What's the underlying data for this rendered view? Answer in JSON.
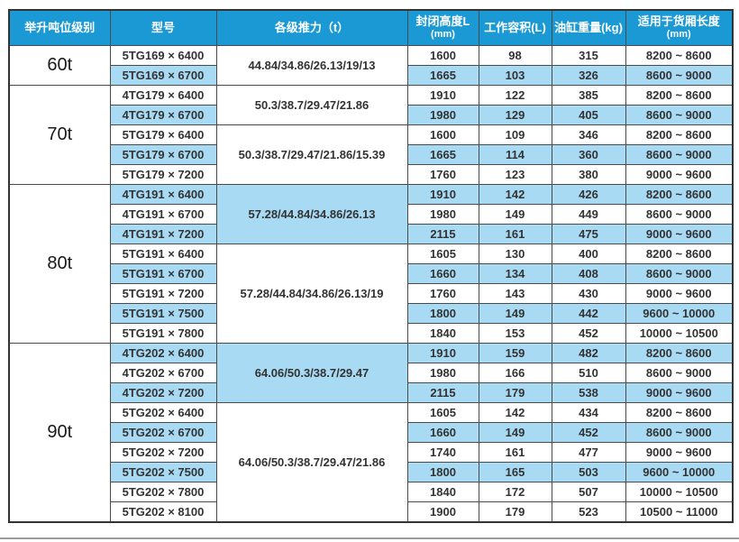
{
  "colors": {
    "header_bg": "#1a99d5",
    "header_text": "#ffffff",
    "row_alt_bg": "#a8daf4",
    "row_bg": "#ffffff",
    "grid_line": "#4a4a4a",
    "outer_border": "#333333",
    "text": "#333333",
    "bottom_rule": "#9b9b9b"
  },
  "table": {
    "headers": [
      {
        "label": "举升吨位级别",
        "sub": ""
      },
      {
        "label": "型号",
        "sub": ""
      },
      {
        "label": "各级推力（t）",
        "sub": ""
      },
      {
        "label": "封闭高度L",
        "sub": "(mm)"
      },
      {
        "label": "工作容积(L)",
        "sub": ""
      },
      {
        "label": "油缸重量(kg)",
        "sub": ""
      },
      {
        "label": "适用于货厢长度",
        "sub": "(mm)"
      }
    ],
    "groups": [
      {
        "tonnage": "60t",
        "thrust_groups": [
          {
            "thrust": "44.84/34.86/26.13/19/13",
            "shaded": false,
            "rows": [
              {
                "model": "5TG169 × 6400",
                "closed_height": "1600",
                "volume": "98",
                "weight": "315",
                "box_length": "8200 ~ 8600",
                "shaded": false
              },
              {
                "model": "5TG169 × 6700",
                "closed_height": "1665",
                "volume": "103",
                "weight": "326",
                "box_length": "8600 ~ 9000",
                "shaded": true
              }
            ]
          }
        ]
      },
      {
        "tonnage": "70t",
        "thrust_groups": [
          {
            "thrust": "50.3/38.7/29.47/21.86",
            "shaded": false,
            "rows": [
              {
                "model": "4TG179 × 6400",
                "closed_height": "1910",
                "volume": "122",
                "weight": "385",
                "box_length": "8200 ~ 8600",
                "shaded": false
              },
              {
                "model": "4TG179 × 6700",
                "closed_height": "1980",
                "volume": "129",
                "weight": "405",
                "box_length": "8600 ~ 9000",
                "shaded": true
              }
            ]
          },
          {
            "thrust": "50.3/38.7/29.47/21.86/15.39",
            "shaded": false,
            "rows": [
              {
                "model": "5TG179 × 6400",
                "closed_height": "1600",
                "volume": "109",
                "weight": "346",
                "box_length": "8200 ~ 8600",
                "shaded": false
              },
              {
                "model": "5TG179 × 6700",
                "closed_height": "1665",
                "volume": "114",
                "weight": "360",
                "box_length": "8600 ~ 9000",
                "shaded": true
              },
              {
                "model": "5TG179 × 7200",
                "closed_height": "1760",
                "volume": "123",
                "weight": "380",
                "box_length": "9000 ~ 9600",
                "shaded": false
              }
            ]
          }
        ]
      },
      {
        "tonnage": "80t",
        "thrust_groups": [
          {
            "thrust": "57.28/44.84/34.86/26.13",
            "shaded": true,
            "rows": [
              {
                "model": "4TG191 × 6400",
                "closed_height": "1910",
                "volume": "142",
                "weight": "426",
                "box_length": "8200 ~ 8600",
                "shaded": true
              },
              {
                "model": "4TG191 × 6700",
                "closed_height": "1980",
                "volume": "149",
                "weight": "449",
                "box_length": "8600 ~ 9000",
                "shaded": false
              },
              {
                "model": "4TG191 × 7200",
                "closed_height": "2115",
                "volume": "161",
                "weight": "475",
                "box_length": "9000 ~ 9600",
                "shaded": true
              }
            ]
          },
          {
            "thrust": "57.28/44.84/34.86/26.13/19",
            "shaded": false,
            "rows": [
              {
                "model": "5TG191 × 6400",
                "closed_height": "1605",
                "volume": "130",
                "weight": "400",
                "box_length": "8200 ~ 8600",
                "shaded": false
              },
              {
                "model": "5TG191 × 6700",
                "closed_height": "1660",
                "volume": "134",
                "weight": "408",
                "box_length": "8600 ~ 9000",
                "shaded": true
              },
              {
                "model": "5TG191 × 7200",
                "closed_height": "1760",
                "volume": "143",
                "weight": "430",
                "box_length": "9000 ~ 9600",
                "shaded": false
              },
              {
                "model": "5TG191 × 7500",
                "closed_height": "1800",
                "volume": "149",
                "weight": "442",
                "box_length": "9600 ~ 10000",
                "shaded": true
              },
              {
                "model": "5TG191 × 7800",
                "closed_height": "1840",
                "volume": "153",
                "weight": "452",
                "box_length": "10000 ~ 10500",
                "shaded": false
              }
            ]
          }
        ]
      },
      {
        "tonnage": "90t",
        "thrust_groups": [
          {
            "thrust": "64.06/50.3/38.7/29.47",
            "shaded": true,
            "rows": [
              {
                "model": "4TG202 × 6400",
                "closed_height": "1910",
                "volume": "159",
                "weight": "482",
                "box_length": "8200 ~ 8600",
                "shaded": true
              },
              {
                "model": "4TG202 × 6700",
                "closed_height": "1980",
                "volume": "166",
                "weight": "510",
                "box_length": "8600 ~ 9000",
                "shaded": false
              },
              {
                "model": "4TG202 × 7200",
                "closed_height": "2115",
                "volume": "179",
                "weight": "538",
                "box_length": "9000 ~ 9600",
                "shaded": true
              }
            ]
          },
          {
            "thrust": "64.06/50.3/38.7/29.47/21.86",
            "shaded": false,
            "rows": [
              {
                "model": "5TG202 × 6400",
                "closed_height": "1605",
                "volume": "142",
                "weight": "434",
                "box_length": "8200 ~ 8600",
                "shaded": false
              },
              {
                "model": "5TG202 × 6700",
                "closed_height": "1660",
                "volume": "149",
                "weight": "452",
                "box_length": "8600 ~ 9000",
                "shaded": true
              },
              {
                "model": "5TG202 × 7200",
                "closed_height": "1740",
                "volume": "161",
                "weight": "477",
                "box_length": "9000 ~ 9600",
                "shaded": false
              },
              {
                "model": "5TG202 × 7500",
                "closed_height": "1800",
                "volume": "165",
                "weight": "503",
                "box_length": "9600 ~ 10000",
                "shaded": true
              },
              {
                "model": "5TG202 × 7800",
                "closed_height": "1840",
                "volume": "172",
                "weight": "507",
                "box_length": "10000 ~ 10500",
                "shaded": false
              },
              {
                "model": "5TG202 × 8100",
                "closed_height": "1900",
                "volume": "179",
                "weight": "523",
                "box_length": "10500 ~ 11000",
                "shaded": false
              }
            ]
          }
        ]
      }
    ]
  }
}
